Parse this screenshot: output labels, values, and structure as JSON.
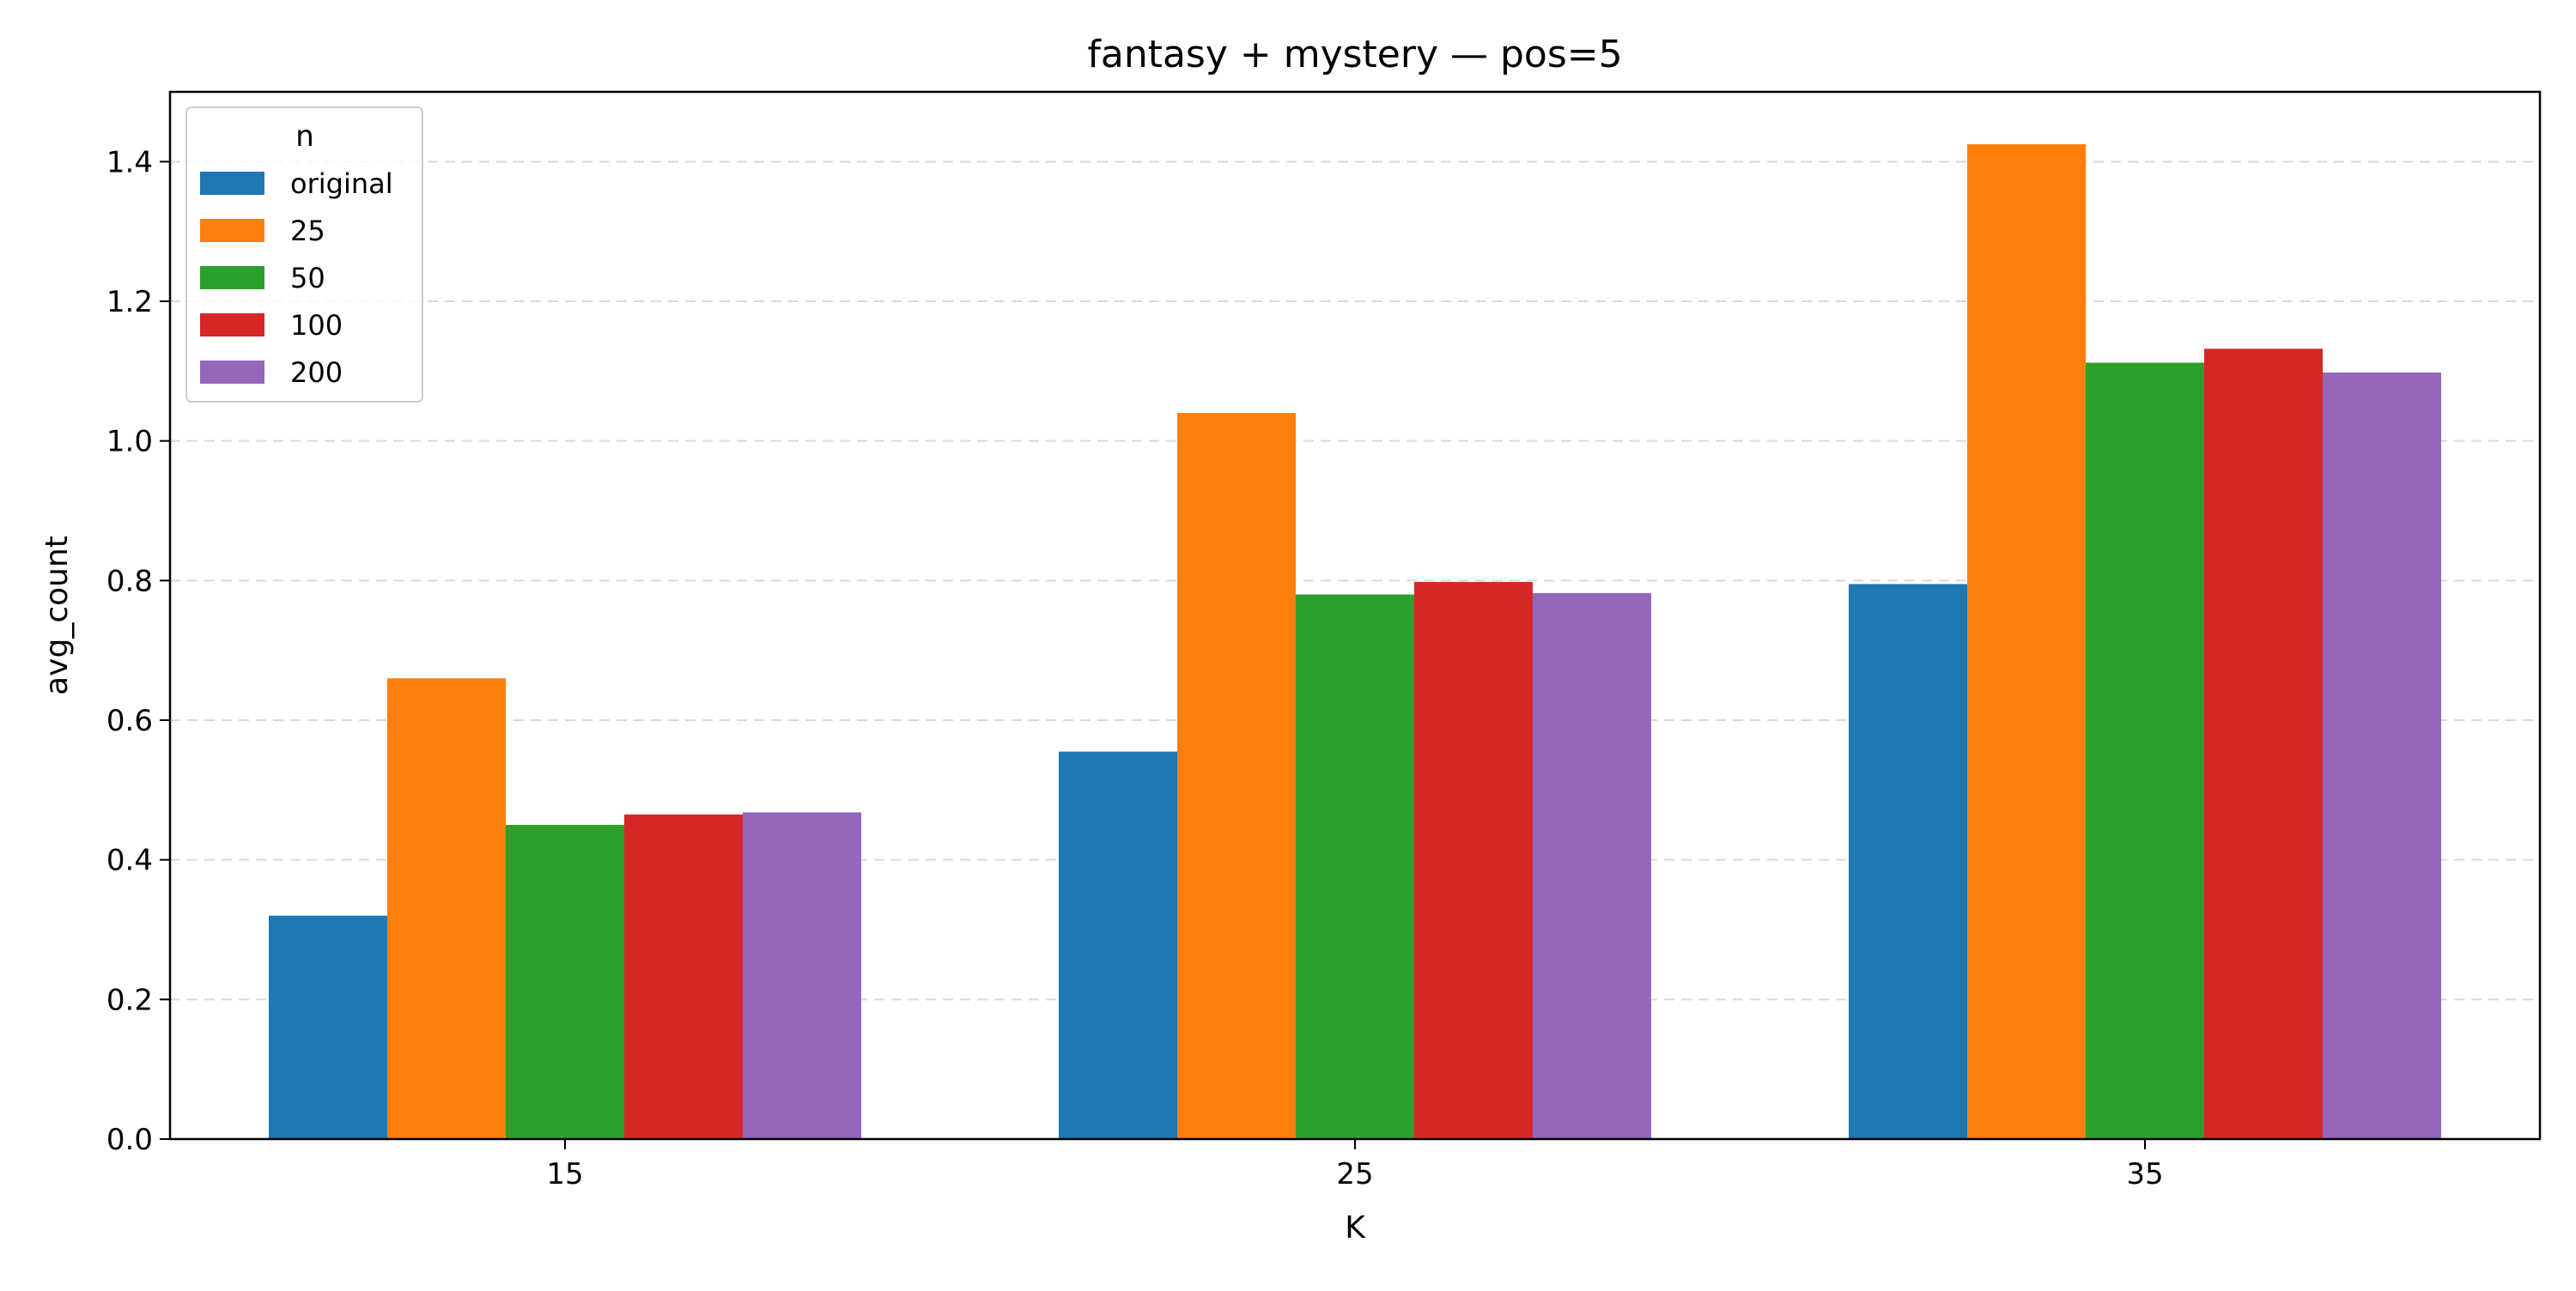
{
  "chart_data": {
    "type": "bar",
    "title": "fantasy + mystery — pos=5",
    "xlabel": "K",
    "ylabel": "avg_count",
    "categories": [
      "15",
      "25",
      "35"
    ],
    "ylim": [
      0,
      1.5
    ],
    "yticks": [
      "0.0",
      "0.2",
      "0.4",
      "0.6",
      "0.8",
      "1.0",
      "1.2",
      "1.4"
    ],
    "grid": "y-dashed",
    "legend": {
      "title": "n",
      "placement": "top-left"
    },
    "series": [
      {
        "name": "original",
        "color": "#1f77b4",
        "values": [
          0.32,
          0.555,
          0.795
        ]
      },
      {
        "name": "25",
        "color": "#ff7f0e",
        "values": [
          0.66,
          1.04,
          1.425
        ]
      },
      {
        "name": "50",
        "color": "#2ca02c",
        "values": [
          0.45,
          0.78,
          1.112
        ]
      },
      {
        "name": "100",
        "color": "#d62728",
        "values": [
          0.465,
          0.798,
          1.132
        ]
      },
      {
        "name": "200",
        "color": "#9467bd",
        "values": [
          0.468,
          0.782,
          1.098
        ]
      }
    ]
  }
}
